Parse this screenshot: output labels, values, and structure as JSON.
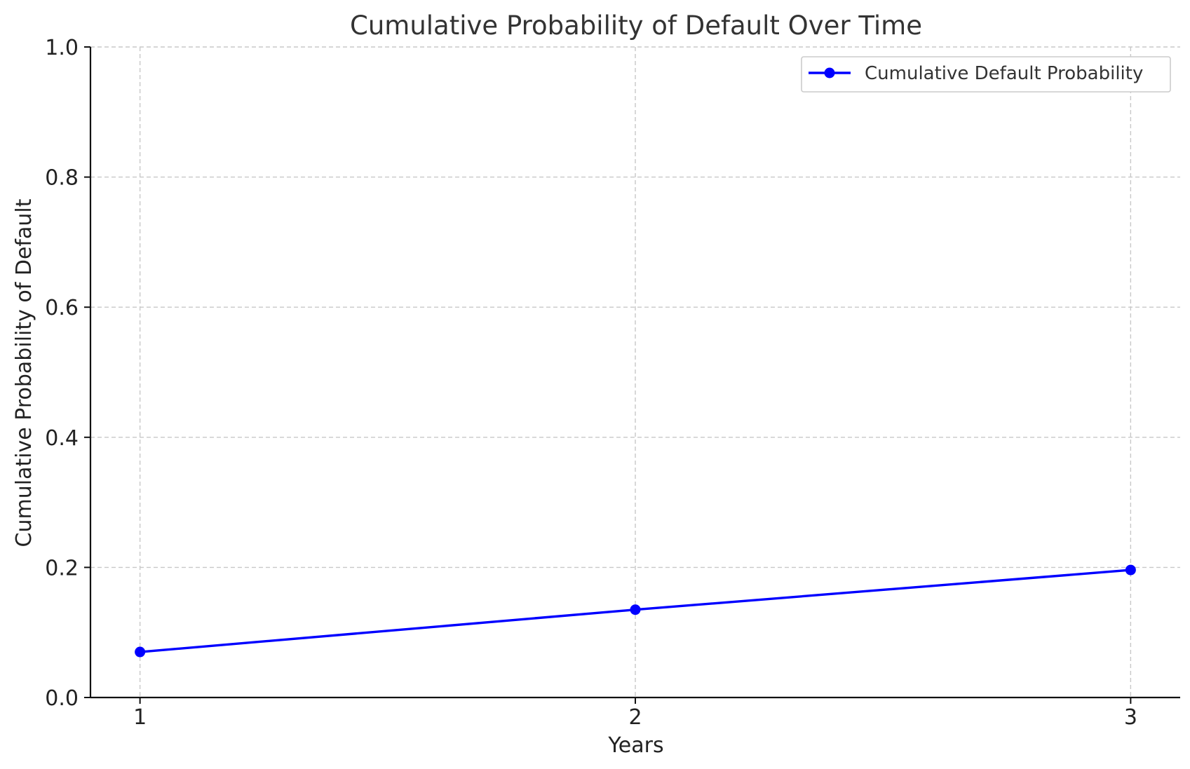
{
  "chart_data": {
    "type": "line",
    "title": "Cumulative Probability of Default Over Time",
    "xlabel": "Years",
    "ylabel": "Cumulative Probability of Default",
    "x": [
      1,
      2,
      3
    ],
    "x_tick_labels": [
      "1",
      "2",
      "3"
    ],
    "y_tick_labels": [
      "0.0",
      "0.2",
      "0.4",
      "0.6",
      "0.8",
      "1.0"
    ],
    "y_ticks": [
      0.0,
      0.2,
      0.4,
      0.6,
      0.8,
      1.0
    ],
    "xlim": [
      0.9,
      3.1
    ],
    "ylim": [
      0,
      1.0
    ],
    "grid": true,
    "legend_position": "top-right",
    "series": [
      {
        "name": "Cumulative Default Probability",
        "values": [
          0.07,
          0.135,
          0.196
        ],
        "color": "#0000ff",
        "marker": "circle"
      }
    ]
  }
}
